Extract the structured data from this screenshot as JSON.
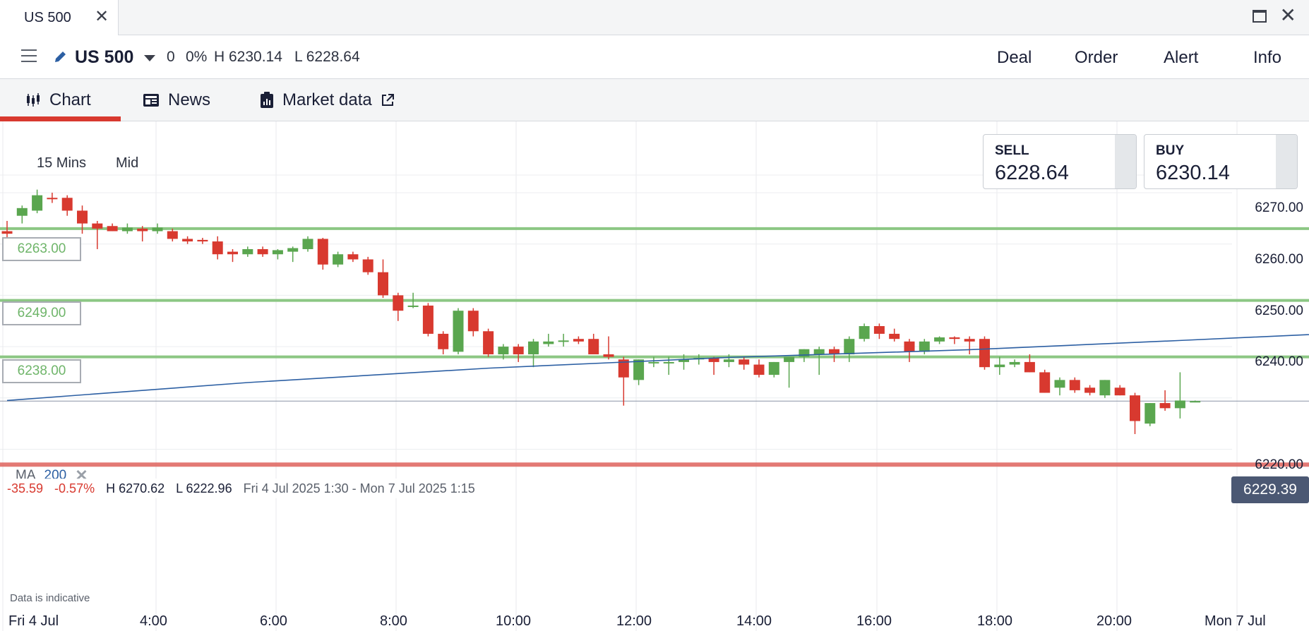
{
  "window": {
    "tab_title": "US 500",
    "tab_close_icon": "close-icon",
    "maximize_icon": "maximize-icon",
    "close_icon": "close-icon"
  },
  "header": {
    "instrument": "US 500",
    "change": "0",
    "change_pct": "0%",
    "high": "H 6230.14",
    "low": "L 6228.64",
    "actions": [
      "Deal",
      "Order",
      "Alert",
      "Info"
    ]
  },
  "subnav": {
    "tabs": [
      {
        "label": "Chart",
        "icon": "candlestick-icon",
        "active": true
      },
      {
        "label": "News",
        "icon": "news-icon",
        "active": false
      },
      {
        "label": "Market data",
        "icon": "market-data-icon",
        "active": false
      }
    ],
    "external_icon": "external-link-icon"
  },
  "chart": {
    "timeframe": "15 Mins",
    "price_type": "Mid",
    "sell": {
      "label": "SELL",
      "price": "6228.64"
    },
    "buy": {
      "label": "BUY",
      "price": "6230.14"
    },
    "level_tags": [
      "6263.00",
      "6249.00",
      "6238.00"
    ],
    "current_price": "6229.39",
    "ma": {
      "label": "MA",
      "period": "200"
    },
    "stats": {
      "change": "-35.59",
      "change_pct": "-0.57%",
      "high": "H 6270.62",
      "low": "L 6222.96",
      "range": "Fri 4 Jul 2025 1:30 - Mon 7 Jul 2025 1:15"
    },
    "disclaimer": "Data is indicative",
    "colors": {
      "up": "#5aa64f",
      "down": "#d8392f",
      "level": "#8cc784",
      "ma": "#2c5fa3",
      "alert": "#e06b66"
    }
  },
  "chart_data": {
    "type": "candlestick",
    "y_ticks": [
      "6270.00",
      "6260.00",
      "6250.00",
      "6240.00",
      "6220.00"
    ],
    "x_ticks": [
      "Fri 4 Jul",
      "4:00",
      "6:00",
      "8:00",
      "10:00",
      "12:00",
      "14:00",
      "16:00",
      "18:00",
      "20:00",
      "Mon 7 Jul"
    ],
    "ylim": [
      6213,
      6285
    ],
    "horizontal_levels": [
      6263.0,
      6249.0,
      6238.0
    ],
    "alert_level": 6217.0,
    "current_price": 6229.39,
    "ma_200": [
      {
        "t": 0,
        "v": 6229.5
      },
      {
        "t": 16,
        "v": 6233.0
      },
      {
        "t": 32,
        "v": 6235.8
      },
      {
        "t": 48,
        "v": 6237.9
      },
      {
        "t": 64,
        "v": 6239.4
      },
      {
        "t": 78,
        "v": 6241.2
      },
      {
        "t": 90,
        "v": 6242.8
      },
      {
        "t": 103,
        "v": 6243.5
      }
    ],
    "candles": [
      {
        "o": 6262.5,
        "h": 6264.5,
        "l": 6261.0,
        "c": 6262.0
      },
      {
        "o": 6265.5,
        "h": 6267.5,
        "l": 6264.0,
        "c": 6267.0
      },
      {
        "o": 6266.5,
        "h": 6270.6,
        "l": 6266.0,
        "c": 6269.5
      },
      {
        "o": 6269.0,
        "h": 6270.0,
        "l": 6268.0,
        "c": 6268.8
      },
      {
        "o": 6269.0,
        "h": 6269.5,
        "l": 6265.5,
        "c": 6266.5
      },
      {
        "o": 6266.5,
        "h": 6267.5,
        "l": 6262.0,
        "c": 6264.0
      },
      {
        "o": 6264.0,
        "h": 6264.5,
        "l": 6259.0,
        "c": 6263.0
      },
      {
        "o": 6263.5,
        "h": 6264.0,
        "l": 6262.5,
        "c": 6262.5
      },
      {
        "o": 6262.5,
        "h": 6264.0,
        "l": 6262.0,
        "c": 6263.2
      },
      {
        "o": 6263.0,
        "h": 6263.5,
        "l": 6260.5,
        "c": 6262.5
      },
      {
        "o": 6262.5,
        "h": 6264.0,
        "l": 6262.0,
        "c": 6263.2
      },
      {
        "o": 6262.5,
        "h": 6263.0,
        "l": 6260.5,
        "c": 6261.0
      },
      {
        "o": 6261.0,
        "h": 6261.5,
        "l": 6260.0,
        "c": 6260.5
      },
      {
        "o": 6260.8,
        "h": 6261.2,
        "l": 6260.0,
        "c": 6260.5
      },
      {
        "o": 6260.5,
        "h": 6261.5,
        "l": 6257.0,
        "c": 6258.0
      },
      {
        "o": 6258.5,
        "h": 6259.0,
        "l": 6256.5,
        "c": 6258.0
      },
      {
        "o": 6258.0,
        "h": 6259.5,
        "l": 6257.5,
        "c": 6259.0
      },
      {
        "o": 6259.0,
        "h": 6259.5,
        "l": 6257.5,
        "c": 6258.0
      },
      {
        "o": 6258.0,
        "h": 6259.0,
        "l": 6257.0,
        "c": 6258.8
      },
      {
        "o": 6258.5,
        "h": 6259.5,
        "l": 6256.5,
        "c": 6259.2
      },
      {
        "o": 6259.0,
        "h": 6261.5,
        "l": 6258.5,
        "c": 6261.0
      },
      {
        "o": 6261.0,
        "h": 6261.2,
        "l": 6255.0,
        "c": 6256.0
      },
      {
        "o": 6256.0,
        "h": 6258.5,
        "l": 6255.5,
        "c": 6258.0
      },
      {
        "o": 6258.0,
        "h": 6258.5,
        "l": 6256.5,
        "c": 6257.0
      },
      {
        "o": 6257.0,
        "h": 6257.5,
        "l": 6254.0,
        "c": 6254.5
      },
      {
        "o": 6254.5,
        "h": 6257.0,
        "l": 6249.5,
        "c": 6250.0
      },
      {
        "o": 6250.0,
        "h": 6250.5,
        "l": 6245.0,
        "c": 6247.0
      },
      {
        "o": 6248.0,
        "h": 6250.5,
        "l": 6247.5,
        "c": 6248.0
      },
      {
        "o": 6248.0,
        "h": 6248.5,
        "l": 6242.0,
        "c": 6242.5
      },
      {
        "o": 6242.5,
        "h": 6243.0,
        "l": 6238.5,
        "c": 6239.5
      },
      {
        "o": 6239.0,
        "h": 6247.5,
        "l": 6238.5,
        "c": 6247.0
      },
      {
        "o": 6247.0,
        "h": 6247.5,
        "l": 6242.0,
        "c": 6243.0
      },
      {
        "o": 6243.0,
        "h": 6243.5,
        "l": 6238.0,
        "c": 6238.5
      },
      {
        "o": 6238.5,
        "h": 6240.5,
        "l": 6237.5,
        "c": 6240.0
      },
      {
        "o": 6240.0,
        "h": 6240.5,
        "l": 6237.0,
        "c": 6238.5
      },
      {
        "o": 6238.5,
        "h": 6241.5,
        "l": 6236.0,
        "c": 6241.0
      },
      {
        "o": 6240.5,
        "h": 6242.5,
        "l": 6240.0,
        "c": 6241.0
      },
      {
        "o": 6241.0,
        "h": 6242.5,
        "l": 6240.0,
        "c": 6241.2
      },
      {
        "o": 6241.5,
        "h": 6242.0,
        "l": 6240.5,
        "c": 6241.0
      },
      {
        "o": 6241.5,
        "h": 6242.5,
        "l": 6238.5,
        "c": 6238.5
      },
      {
        "o": 6238.5,
        "h": 6242.0,
        "l": 6237.5,
        "c": 6238.0
      },
      {
        "o": 6237.5,
        "h": 6238.0,
        "l": 6228.5,
        "c": 6234.0
      },
      {
        "o": 6233.5,
        "h": 6237.5,
        "l": 6232.5,
        "c": 6237.5
      },
      {
        "o": 6237.0,
        "h": 6238.0,
        "l": 6236.0,
        "c": 6237.0
      },
      {
        "o": 6237.0,
        "h": 6238.0,
        "l": 6234.5,
        "c": 6237.0
      },
      {
        "o": 6237.0,
        "h": 6238.5,
        "l": 6235.5,
        "c": 6237.5
      },
      {
        "o": 6237.5,
        "h": 6238.5,
        "l": 6236.5,
        "c": 6237.8
      },
      {
        "o": 6237.8,
        "h": 6238.0,
        "l": 6234.5,
        "c": 6237.0
      },
      {
        "o": 6237.0,
        "h": 6238.5,
        "l": 6236.0,
        "c": 6237.5
      },
      {
        "o": 6237.5,
        "h": 6238.0,
        "l": 6235.5,
        "c": 6236.5
      },
      {
        "o": 6236.5,
        "h": 6237.5,
        "l": 6234.0,
        "c": 6234.5
      },
      {
        "o": 6234.5,
        "h": 6237.0,
        "l": 6234.0,
        "c": 6237.0
      },
      {
        "o": 6237.0,
        "h": 6238.0,
        "l": 6232.0,
        "c": 6238.0
      },
      {
        "o": 6238.0,
        "h": 6239.5,
        "l": 6237.0,
        "c": 6239.5
      },
      {
        "o": 6238.5,
        "h": 6240.0,
        "l": 6234.5,
        "c": 6239.5
      },
      {
        "o": 6239.5,
        "h": 6240.0,
        "l": 6237.0,
        "c": 6238.5
      },
      {
        "o": 6238.5,
        "h": 6242.0,
        "l": 6237.0,
        "c": 6241.5
      },
      {
        "o": 6241.5,
        "h": 6244.5,
        "l": 6241.0,
        "c": 6244.0
      },
      {
        "o": 6244.0,
        "h": 6244.5,
        "l": 6241.5,
        "c": 6242.5
      },
      {
        "o": 6242.5,
        "h": 6243.5,
        "l": 6241.0,
        "c": 6241.5
      },
      {
        "o": 6241.0,
        "h": 6241.5,
        "l": 6237.0,
        "c": 6239.0
      },
      {
        "o": 6239.0,
        "h": 6241.5,
        "l": 6238.5,
        "c": 6241.0
      },
      {
        "o": 6241.0,
        "h": 6242.0,
        "l": 6240.5,
        "c": 6241.8
      },
      {
        "o": 6241.8,
        "h": 6242.0,
        "l": 6240.5,
        "c": 6241.5
      },
      {
        "o": 6241.5,
        "h": 6242.0,
        "l": 6238.5,
        "c": 6241.0
      },
      {
        "o": 6241.5,
        "h": 6242.0,
        "l": 6235.5,
        "c": 6236.0
      },
      {
        "o": 6236.0,
        "h": 6238.0,
        "l": 6234.5,
        "c": 6236.5
      },
      {
        "o": 6236.5,
        "h": 6237.5,
        "l": 6236.0,
        "c": 6237.0
      },
      {
        "o": 6237.0,
        "h": 6238.5,
        "l": 6235.0,
        "c": 6235.0
      },
      {
        "o": 6235.0,
        "h": 6235.5,
        "l": 6231.0,
        "c": 6231.0
      },
      {
        "o": 6232.0,
        "h": 6234.0,
        "l": 6230.5,
        "c": 6233.5
      },
      {
        "o": 6233.5,
        "h": 6234.0,
        "l": 6231.0,
        "c": 6231.5
      },
      {
        "o": 6232.0,
        "h": 6232.5,
        "l": 6230.5,
        "c": 6231.0
      },
      {
        "o": 6230.5,
        "h": 6233.5,
        "l": 6230.0,
        "c": 6233.5
      },
      {
        "o": 6232.0,
        "h": 6232.5,
        "l": 6230.5,
        "c": 6230.5
      },
      {
        "o": 6230.5,
        "h": 6231.0,
        "l": 6222.96,
        "c": 6225.5
      },
      {
        "o": 6225.0,
        "h": 6229.0,
        "l": 6224.5,
        "c": 6229.0
      },
      {
        "o": 6229.0,
        "h": 6231.5,
        "l": 6227.5,
        "c": 6228.0
      },
      {
        "o": 6228.0,
        "h": 6235.0,
        "l": 6226.0,
        "c": 6229.5
      },
      {
        "o": 6229.39,
        "h": 6229.5,
        "l": 6229.2,
        "c": 6229.39
      }
    ]
  }
}
